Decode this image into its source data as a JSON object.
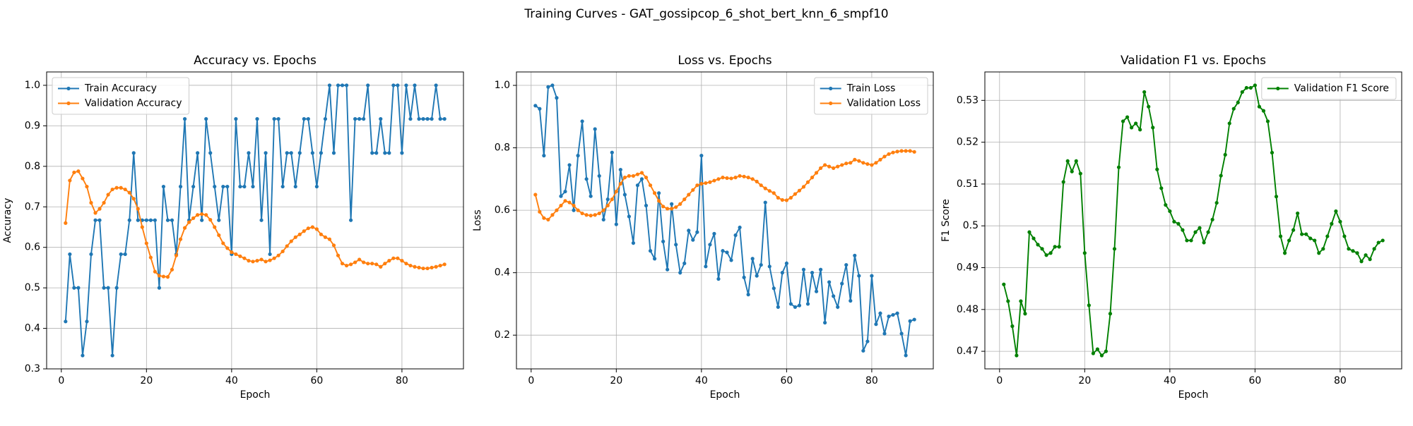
{
  "title": "Training Curves - GAT_gossipcop_6_shot_bert_knn_6_smpf10",
  "chart_data": [
    {
      "type": "line",
      "title": "Accuracy vs. Epochs",
      "xlabel": "Epoch",
      "ylabel": "Accuracy",
      "x": [
        1,
        2,
        3,
        4,
        5,
        6,
        7,
        8,
        9,
        10,
        11,
        12,
        13,
        14,
        15,
        16,
        17,
        18,
        19,
        20,
        21,
        22,
        23,
        24,
        25,
        26,
        27,
        28,
        29,
        30,
        31,
        32,
        33,
        34,
        35,
        36,
        37,
        38,
        39,
        40,
        41,
        42,
        43,
        44,
        45,
        46,
        47,
        48,
        49,
        50,
        51,
        52,
        53,
        54,
        55,
        56,
        57,
        58,
        59,
        60,
        61,
        62,
        63,
        64,
        65,
        66,
        67,
        68,
        69,
        70,
        71,
        72,
        73,
        74,
        75,
        76,
        77,
        78,
        79,
        80,
        81,
        82,
        83,
        84,
        85,
        86,
        87,
        88,
        89,
        90
      ],
      "series": [
        {
          "name": "Train Accuracy",
          "color": "#1f77b4",
          "values": [
            0.417,
            0.583,
            0.5,
            0.5,
            0.333,
            0.417,
            0.583,
            0.667,
            0.667,
            0.5,
            0.5,
            0.333,
            0.5,
            0.583,
            0.583,
            0.667,
            0.833,
            0.667,
            0.667,
            0.667,
            0.667,
            0.667,
            0.5,
            0.75,
            0.667,
            0.667,
            0.583,
            0.75,
            0.917,
            0.667,
            0.75,
            0.833,
            0.667,
            0.917,
            0.833,
            0.75,
            0.667,
            0.75,
            0.75,
            0.583,
            0.917,
            0.75,
            0.75,
            0.833,
            0.75,
            0.917,
            0.667,
            0.833,
            0.583,
            0.917,
            0.917,
            0.75,
            0.833,
            0.833,
            0.75,
            0.833,
            0.917,
            0.917,
            0.833,
            0.75,
            0.833,
            0.917,
            1.0,
            0.833,
            1.0,
            1.0,
            1.0,
            0.667,
            0.917,
            0.917,
            0.917,
            1.0,
            0.833,
            0.833,
            0.917,
            0.833,
            0.833,
            1.0,
            1.0,
            0.833,
            1.0,
            0.917,
            1.0,
            0.917,
            0.917,
            0.917,
            0.917,
            1.0,
            0.917,
            0.917
          ]
        },
        {
          "name": "Validation Accuracy",
          "color": "#ff7f0e",
          "values": [
            0.66,
            0.765,
            0.785,
            0.788,
            0.77,
            0.75,
            0.71,
            0.685,
            0.695,
            0.71,
            0.73,
            0.743,
            0.747,
            0.747,
            0.743,
            0.735,
            0.72,
            0.695,
            0.65,
            0.61,
            0.575,
            0.54,
            0.53,
            0.528,
            0.527,
            0.545,
            0.58,
            0.62,
            0.648,
            0.662,
            0.672,
            0.68,
            0.682,
            0.68,
            0.668,
            0.65,
            0.63,
            0.61,
            0.598,
            0.588,
            0.583,
            0.578,
            0.573,
            0.567,
            0.565,
            0.567,
            0.57,
            0.565,
            0.568,
            0.573,
            0.58,
            0.59,
            0.603,
            0.615,
            0.625,
            0.632,
            0.64,
            0.647,
            0.65,
            0.645,
            0.632,
            0.625,
            0.62,
            0.605,
            0.58,
            0.56,
            0.555,
            0.558,
            0.563,
            0.57,
            0.563,
            0.56,
            0.56,
            0.558,
            0.552,
            0.56,
            0.567,
            0.573,
            0.573,
            0.567,
            0.56,
            0.555,
            0.552,
            0.55,
            0.548,
            0.548,
            0.55,
            0.552,
            0.555,
            0.558
          ]
        }
      ],
      "xlim": [
        -3.45,
        94.45
      ],
      "ylim": [
        0.3,
        1.033
      ],
      "xticks": [
        0,
        20,
        40,
        60,
        80
      ],
      "yticks": [
        0.3,
        0.4,
        0.5,
        0.6,
        0.7,
        0.8,
        0.9,
        {
          "value": 1,
          "label": "1.0"
        }
      ],
      "grid": true,
      "legend": "upper left"
    },
    {
      "type": "line",
      "title": "Loss vs. Epochs",
      "xlabel": "Epoch",
      "ylabel": "Loss",
      "x": [
        1,
        2,
        3,
        4,
        5,
        6,
        7,
        8,
        9,
        10,
        11,
        12,
        13,
        14,
        15,
        16,
        17,
        18,
        19,
        20,
        21,
        22,
        23,
        24,
        25,
        26,
        27,
        28,
        29,
        30,
        31,
        32,
        33,
        34,
        35,
        36,
        37,
        38,
        39,
        40,
        41,
        42,
        43,
        44,
        45,
        46,
        47,
        48,
        49,
        50,
        51,
        52,
        53,
        54,
        55,
        56,
        57,
        58,
        59,
        60,
        61,
        62,
        63,
        64,
        65,
        66,
        67,
        68,
        69,
        70,
        71,
        72,
        73,
        74,
        75,
        76,
        77,
        78,
        79,
        80,
        81,
        82,
        83,
        84,
        85,
        86,
        87,
        88,
        89,
        90
      ],
      "series": [
        {
          "name": "Train Loss",
          "color": "#1f77b4",
          "values": [
            0.935,
            0.925,
            0.775,
            0.995,
            1.0,
            0.96,
            0.645,
            0.66,
            0.745,
            0.6,
            0.775,
            0.885,
            0.7,
            0.645,
            0.86,
            0.71,
            0.57,
            0.635,
            0.785,
            0.555,
            0.73,
            0.65,
            0.58,
            0.495,
            0.68,
            0.7,
            0.615,
            0.47,
            0.445,
            0.655,
            0.5,
            0.41,
            0.62,
            0.49,
            0.4,
            0.43,
            0.535,
            0.505,
            0.53,
            0.775,
            0.42,
            0.49,
            0.525,
            0.38,
            0.47,
            0.465,
            0.44,
            0.52,
            0.545,
            0.385,
            0.33,
            0.445,
            0.39,
            0.425,
            0.625,
            0.42,
            0.35,
            0.29,
            0.4,
            0.43,
            0.3,
            0.29,
            0.295,
            0.41,
            0.3,
            0.4,
            0.34,
            0.41,
            0.24,
            0.37,
            0.325,
            0.29,
            0.365,
            0.425,
            0.31,
            0.455,
            0.39,
            0.15,
            0.18,
            0.39,
            0.235,
            0.27,
            0.205,
            0.26,
            0.265,
            0.27,
            0.205,
            0.135,
            0.245,
            0.25
          ]
        },
        {
          "name": "Validation Loss",
          "color": "#ff7f0e",
          "values": [
            0.65,
            0.595,
            0.575,
            0.57,
            0.585,
            0.6,
            0.615,
            0.63,
            0.625,
            0.615,
            0.6,
            0.59,
            0.585,
            0.583,
            0.585,
            0.59,
            0.6,
            0.615,
            0.635,
            0.66,
            0.685,
            0.705,
            0.71,
            0.71,
            0.715,
            0.72,
            0.705,
            0.68,
            0.655,
            0.63,
            0.612,
            0.605,
            0.605,
            0.61,
            0.62,
            0.635,
            0.65,
            0.665,
            0.68,
            0.685,
            0.687,
            0.69,
            0.695,
            0.7,
            0.705,
            0.703,
            0.702,
            0.705,
            0.71,
            0.708,
            0.705,
            0.7,
            0.692,
            0.68,
            0.67,
            0.662,
            0.655,
            0.64,
            0.633,
            0.632,
            0.64,
            0.652,
            0.663,
            0.675,
            0.69,
            0.705,
            0.72,
            0.735,
            0.745,
            0.74,
            0.735,
            0.74,
            0.745,
            0.75,
            0.752,
            0.762,
            0.758,
            0.752,
            0.748,
            0.745,
            0.752,
            0.762,
            0.772,
            0.78,
            0.785,
            0.788,
            0.79,
            0.79,
            0.79,
            0.787
          ]
        }
      ],
      "xlim": [
        -3.45,
        94.45
      ],
      "ylim": [
        0.092,
        1.043
      ],
      "xticks": [
        0,
        20,
        40,
        60,
        80
      ],
      "yticks": [
        0.2,
        0.4,
        0.6,
        0.8,
        {
          "value": 1,
          "label": "1.0"
        }
      ],
      "grid": true,
      "legend": "upper right"
    },
    {
      "type": "line",
      "title": "Validation F1 vs. Epochs",
      "xlabel": "Epoch",
      "ylabel": "F1 Score",
      "x": [
        1,
        2,
        3,
        4,
        5,
        6,
        7,
        8,
        9,
        10,
        11,
        12,
        13,
        14,
        15,
        16,
        17,
        18,
        19,
        20,
        21,
        22,
        23,
        24,
        25,
        26,
        27,
        28,
        29,
        30,
        31,
        32,
        33,
        34,
        35,
        36,
        37,
        38,
        39,
        40,
        41,
        42,
        43,
        44,
        45,
        46,
        47,
        48,
        49,
        50,
        51,
        52,
        53,
        54,
        55,
        56,
        57,
        58,
        59,
        60,
        61,
        62,
        63,
        64,
        65,
        66,
        67,
        68,
        69,
        70,
        71,
        72,
        73,
        74,
        75,
        76,
        77,
        78,
        79,
        80,
        81,
        82,
        83,
        84,
        85,
        86,
        87,
        88,
        89,
        90
      ],
      "series": [
        {
          "name": "Validation F1 Score",
          "color": "#008000",
          "values": [
            0.486,
            0.482,
            0.476,
            0.469,
            0.482,
            0.479,
            0.4985,
            0.497,
            0.4955,
            0.4945,
            0.493,
            0.4935,
            0.495,
            0.495,
            0.5105,
            0.5155,
            0.513,
            0.5155,
            0.5125,
            0.4935,
            0.481,
            0.4695,
            0.4705,
            0.469,
            0.47,
            0.479,
            0.4945,
            0.514,
            0.525,
            0.526,
            0.5235,
            0.5245,
            0.523,
            0.532,
            0.5285,
            0.5235,
            0.5135,
            0.509,
            0.505,
            0.5035,
            0.501,
            0.5005,
            0.499,
            0.4965,
            0.4965,
            0.4985,
            0.4995,
            0.496,
            0.4985,
            0.5015,
            0.5055,
            0.512,
            0.517,
            0.5245,
            0.528,
            0.5295,
            0.532,
            0.533,
            0.533,
            0.5336,
            0.5285,
            0.5275,
            0.525,
            0.5175,
            0.507,
            0.4975,
            0.4935,
            0.4965,
            0.499,
            0.503,
            0.498,
            0.498,
            0.497,
            0.4965,
            0.4935,
            0.4945,
            0.4975,
            0.5005,
            0.5035,
            0.501,
            0.4975,
            0.4945,
            0.494,
            0.4935,
            0.4915,
            0.493,
            0.492,
            0.4945,
            0.496,
            0.4965
          ]
        }
      ],
      "xlim": [
        -3.45,
        94.45
      ],
      "ylim": [
        0.4658,
        0.5368
      ],
      "xticks": [
        0,
        20,
        40,
        60,
        80
      ],
      "yticks": [
        0.47,
        0.48,
        0.49,
        0.5,
        0.51,
        0.52,
        0.53
      ],
      "grid": true,
      "legend": "upper right"
    }
  ]
}
